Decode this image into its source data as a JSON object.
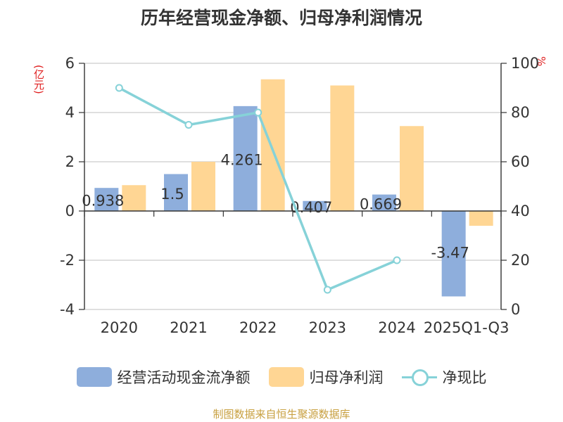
{
  "title": "历年经营现金净额、归母净利润情况",
  "source": "制图数据来自恒生聚源数据库",
  "unit_left": "(亿元)",
  "unit_right": "%",
  "colors": {
    "cash": "#8eaedc",
    "profit": "#ffd694",
    "ratio": "#86d2d8"
  },
  "chart_data": {
    "type": "bar+line",
    "categories": [
      "2020",
      "2021",
      "2022",
      "2023",
      "2024",
      "2025Q1-Q3"
    ],
    "series": [
      {
        "name": "经营活动现金流净额",
        "type": "bar",
        "axis": "left",
        "values": [
          0.938,
          1.5,
          4.261,
          0.407,
          0.669,
          -3.47
        ],
        "labels": [
          "0.938",
          "1.5",
          "4.261",
          "0.407",
          "0.669",
          "-3.47"
        ]
      },
      {
        "name": "归母净利润",
        "type": "bar",
        "axis": "left",
        "values": [
          1.05,
          2.0,
          5.35,
          5.1,
          3.45,
          -0.6
        ]
      },
      {
        "name": "净现比",
        "type": "line",
        "axis": "right",
        "values": [
          90,
          75,
          80,
          8,
          20,
          null
        ]
      }
    ],
    "left_axis": {
      "min": -4,
      "max": 6,
      "ticks": [
        -4,
        -2,
        0,
        2,
        4,
        6
      ]
    },
    "right_axis": {
      "min": 0,
      "max": 100,
      "ticks": [
        0,
        20,
        40,
        60,
        80,
        100
      ]
    },
    "legend": [
      "经营活动现金流净额",
      "归母净利润",
      "净现比"
    ]
  }
}
